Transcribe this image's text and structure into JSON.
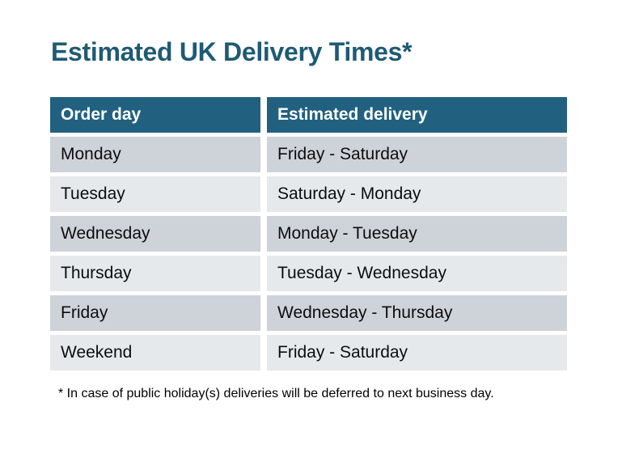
{
  "title": {
    "text": "Estimated UK Delivery Times*",
    "color": "#1e5a74"
  },
  "table": {
    "header": {
      "order_day": "Order day",
      "estimated_delivery": "Estimated delivery",
      "bg_color": "#21617f",
      "text_color": "#ffffff"
    },
    "row_colors": {
      "odd": "#ced2d9",
      "even": "#e6e9ec"
    },
    "rows": [
      {
        "order_day": "Monday",
        "estimated_delivery": "Friday - Saturday"
      },
      {
        "order_day": "Tuesday",
        "estimated_delivery": "Saturday - Monday"
      },
      {
        "order_day": "Wednesday",
        "estimated_delivery": "Monday - Tuesday"
      },
      {
        "order_day": "Thursday",
        "estimated_delivery": "Tuesday - Wednesday"
      },
      {
        "order_day": "Friday",
        "estimated_delivery": "Wednesday - Thursday"
      },
      {
        "order_day": "Weekend",
        "estimated_delivery": "Friday - Saturday"
      }
    ]
  },
  "footnote": {
    "text": "* In case of public holiday(s) deliveries will be deferred to next business day."
  }
}
